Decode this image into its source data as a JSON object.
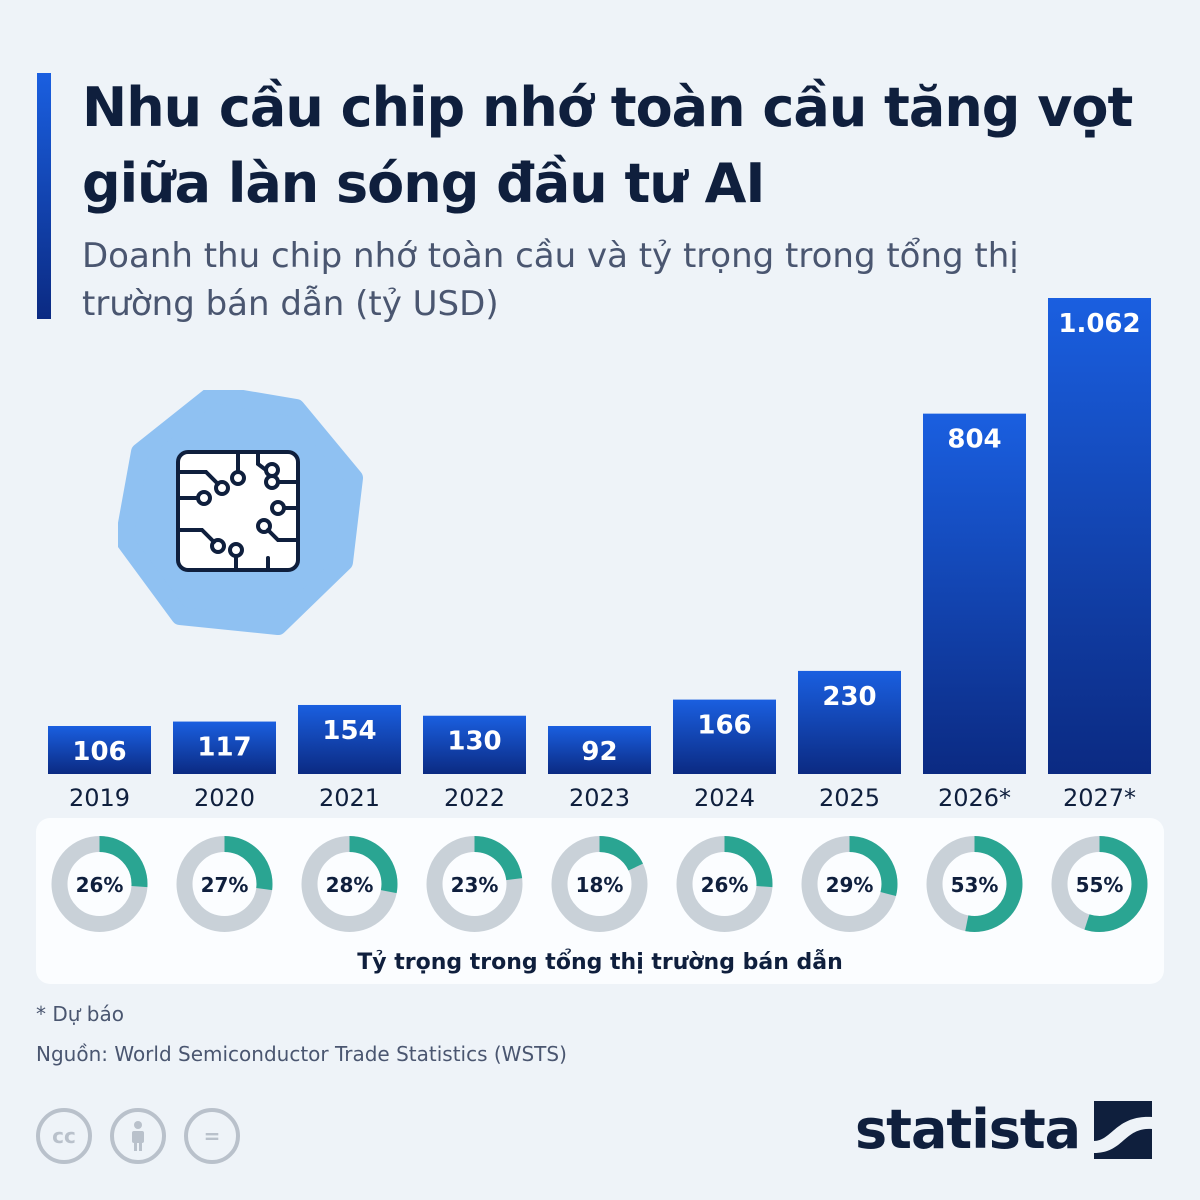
{
  "header": {
    "title": "Nhu cầu chip nhớ toàn cầu tăng vọt giữa làn sóng đầu tư AI",
    "subtitle": "Doanh thu chip nhớ toàn cầu và tỷ trọng trong tổng thị trường bán dẫn (tỷ USD)"
  },
  "chart_data": [
    {
      "type": "bar",
      "categories": [
        "2019",
        "2020",
        "2021",
        "2022",
        "2023",
        "2024",
        "2025",
        "2026*",
        "2027*"
      ],
      "values": [
        106,
        117,
        154,
        130,
        92,
        166,
        230,
        804,
        1062
      ],
      "value_labels": [
        "106",
        "117",
        "154",
        "130",
        "92",
        "166",
        "230",
        "804",
        "1.062"
      ],
      "ylabel": "",
      "colors": {
        "bar_top": "#1a5fe0",
        "bar_bottom": "#0b2a82",
        "label": "#ffffff"
      },
      "grid": false
    },
    {
      "type": "pie",
      "categories": [
        "2019",
        "2020",
        "2021",
        "2022",
        "2023",
        "2024",
        "2025",
        "2026*",
        "2027*"
      ],
      "values": [
        26,
        27,
        28,
        23,
        18,
        26,
        29,
        53,
        55
      ],
      "value_labels": [
        "26%",
        "27%",
        "28%",
        "23%",
        "18%",
        "26%",
        "29%",
        "53%",
        "55%"
      ],
      "caption": "Tỷ trọng trong tổng thị trường bán dẫn",
      "colors": {
        "share": "#2aa592",
        "rest": "#c9d1d8"
      }
    }
  ],
  "footer": {
    "footnote": "* Dự báo",
    "source": "Nguồn: World Semiconductor Trade Statistics (WSTS)",
    "cc_icons": [
      "creative-commons-icon",
      "attribution-icon",
      "no-derivatives-icon"
    ],
    "cc_glyph": "cc",
    "nd_glyph": "=",
    "brand": "statista"
  },
  "colors": {
    "background": "#eef3f8",
    "title": "#0f1f3d",
    "subtitle": "#4a5670",
    "accent": "#1a5fe0",
    "icon_blob": "#8fc1f2"
  }
}
